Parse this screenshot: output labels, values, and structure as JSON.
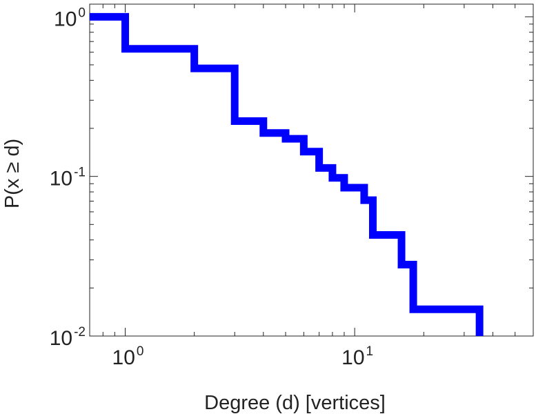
{
  "chart_data": {
    "type": "line",
    "step": true,
    "xscale": "log",
    "yscale": "log",
    "xlabel": "Degree (d) [vertices]",
    "ylabel": "P(x ≥ d)",
    "xlim": [
      0.7,
      60
    ],
    "ylim": [
      0.01,
      1.2
    ],
    "grid": false,
    "x_ticks": [
      {
        "value": 1,
        "base": "10",
        "exp": "0"
      },
      {
        "value": 10,
        "base": "10",
        "exp": "1"
      }
    ],
    "y_ticks": [
      {
        "value": 1,
        "base": "10",
        "exp": "0"
      },
      {
        "value": 0.1,
        "base": "10",
        "exp": "-1"
      },
      {
        "value": 0.01,
        "base": "10",
        "exp": "-2"
      }
    ],
    "series": [
      {
        "color": "#0000ff",
        "x": [
          0.7,
          1,
          2,
          3,
          4,
          5,
          6,
          7,
          8,
          9,
          11,
          12,
          16,
          18,
          35
        ],
        "y": [
          1.0,
          0.63,
          0.475,
          0.222,
          0.187,
          0.172,
          0.143,
          0.113,
          0.098,
          0.085,
          0.071,
          0.043,
          0.028,
          0.0147,
          0.01
        ]
      }
    ]
  }
}
